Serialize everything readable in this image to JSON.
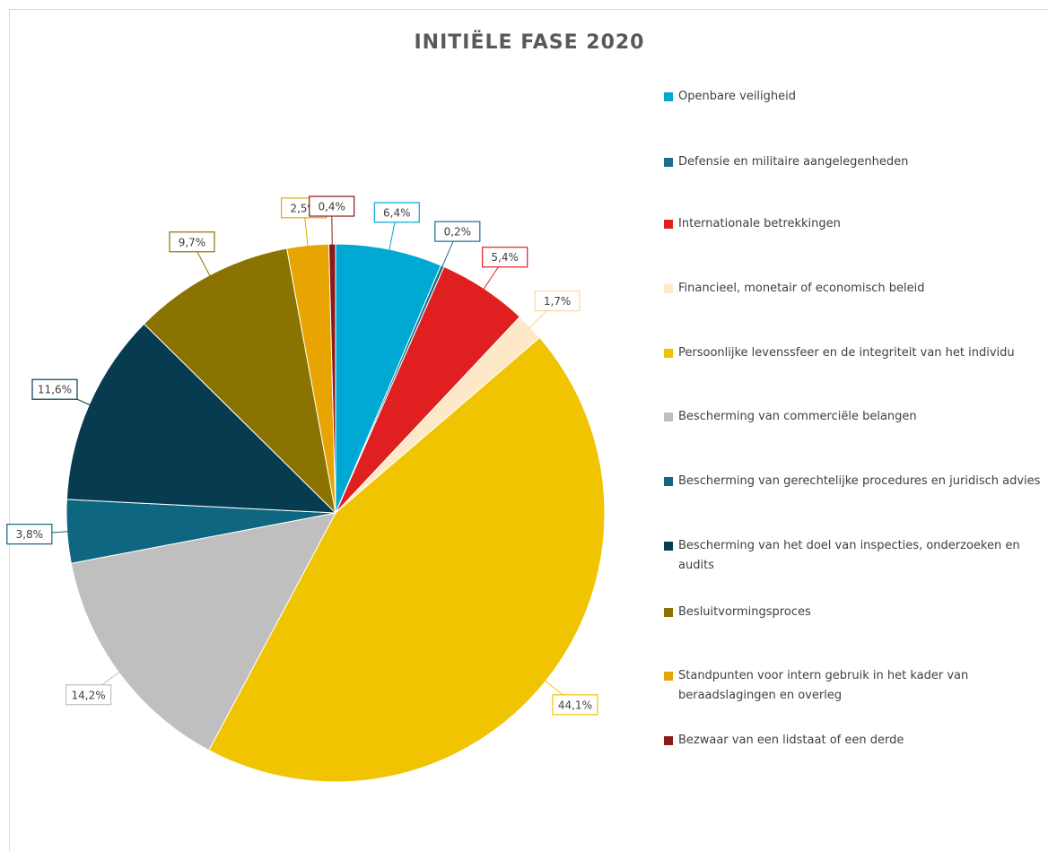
{
  "chart_data": {
    "type": "pie",
    "title": "INITIËLE FASE 2020",
    "categories": [
      "Openbare veiligheid",
      "Defensie en militaire aangelegenheden",
      "Internationale betrekkingen",
      "Financieel, monetair of economisch beleid",
      "Persoonlijke levenssfeer en de integriteit van het individu",
      "Bescherming van commerciële belangen",
      "Bescherming van gerechtelijke procedures en juridisch advies",
      "Bescherming van het doel van inspecties, onderzoeken en audits",
      "Besluitvormingsproces",
      "Standpunten voor intern gebruik in het kader van beraadslagingen en overleg",
      "Bezwaar van een lidstaat of een derde"
    ],
    "values": [
      6.4,
      0.2,
      5.4,
      1.7,
      44.1,
      14.2,
      3.8,
      11.6,
      9.7,
      2.5,
      0.4
    ],
    "value_labels": [
      "6,4%",
      "0,2%",
      "5,4%",
      "1,7%",
      "44,1%",
      "14,2%",
      "3,8%",
      "11,6%",
      "9,7%",
      "2,5%",
      "0,4%"
    ],
    "colors": [
      "#00a9d4",
      "#1a6e8c",
      "#e02020",
      "#fde9c8",
      "#f0c400",
      "#bfbfbf",
      "#0e6680",
      "#073b50",
      "#8a7300",
      "#e8a400",
      "#8b1a1a"
    ],
    "legend": "right"
  }
}
